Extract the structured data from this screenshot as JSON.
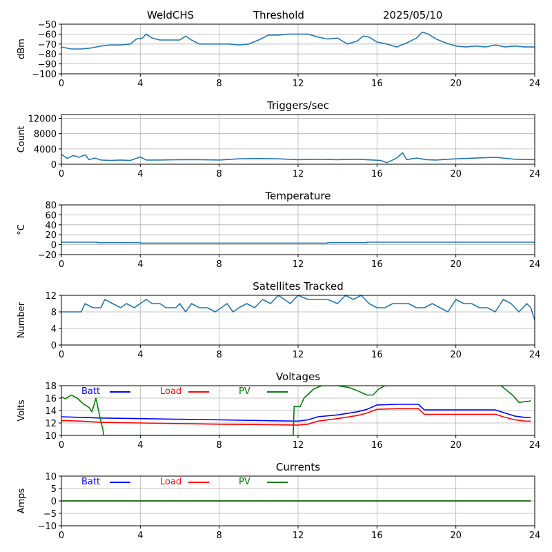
{
  "header": {
    "station": "WeldCHS",
    "mode": "Threshold",
    "date": "2025/05/10"
  },
  "colors": {
    "series": "#1f77b4",
    "batt": "#0000ff",
    "load": "#ff0000",
    "pv": "#008000",
    "grid": "#b0b0b0"
  },
  "chart_data": [
    {
      "type": "line",
      "title": "",
      "ylabel": "dBm",
      "xlim": [
        0,
        24
      ],
      "ylim": [
        -100,
        -50
      ],
      "xticks": [
        0,
        4,
        8,
        12,
        16,
        20,
        24
      ],
      "yticks": [
        -100,
        -90,
        -80,
        -70,
        -60,
        -50
      ],
      "grid": true,
      "series": [
        {
          "x": [
            0,
            0.5,
            1,
            1.5,
            2,
            2.5,
            3,
            3.5,
            3.8,
            4.1,
            4.3,
            4.6,
            5,
            5.5,
            6,
            6.3,
            6.6,
            7,
            7.5,
            8,
            8.5,
            9,
            9.5,
            10,
            10.5,
            11,
            11.5,
            12,
            12.5,
            13,
            13.5,
            14,
            14.5,
            15,
            15.3,
            15.6,
            16,
            16.5,
            17,
            17.5,
            18,
            18.3,
            18.6,
            19,
            19.5,
            20,
            20.5,
            21,
            21.5,
            22,
            22.5,
            23,
            23.5,
            24
          ],
          "y": [
            -73,
            -75,
            -75,
            -74,
            -72,
            -71,
            -71,
            -70,
            -65,
            -64,
            -60,
            -64,
            -66,
            -66,
            -66,
            -62,
            -66,
            -70,
            -70,
            -70,
            -70,
            -71,
            -70,
            -66,
            -61,
            -61,
            -60,
            -60,
            -60,
            -63,
            -65,
            -64,
            -70,
            -67,
            -62,
            -63,
            -68,
            -70,
            -73,
            -69,
            -64,
            -58,
            -60,
            -65,
            -69,
            -72,
            -73,
            -72,
            -73,
            -71,
            -73,
            -72,
            -73,
            -73
          ]
        }
      ]
    },
    {
      "type": "line",
      "title": "Triggers/sec",
      "ylabel": "Count",
      "xlim": [
        0,
        24
      ],
      "ylim": [
        0,
        13000
      ],
      "xticks": [
        0,
        4,
        8,
        12,
        16,
        20,
        24
      ],
      "yticks": [
        0,
        4000,
        8000,
        12000
      ],
      "grid": true,
      "series": [
        {
          "x": [
            0,
            0.3,
            0.6,
            0.9,
            1.2,
            1.4,
            1.7,
            2,
            2.5,
            3,
            3.5,
            4,
            4.3,
            5,
            6,
            7,
            8,
            9,
            10,
            11,
            12,
            13,
            14,
            15,
            15.8,
            16.2,
            16.5,
            17,
            17.3,
            17.5,
            18,
            18.5,
            19,
            20,
            21,
            22,
            23,
            24
          ],
          "y": [
            2600,
            1500,
            2300,
            1800,
            2500,
            1200,
            1600,
            1100,
            1000,
            1100,
            1000,
            1900,
            1100,
            1100,
            1200,
            1200,
            1100,
            1400,
            1500,
            1400,
            1200,
            1300,
            1200,
            1300,
            1100,
            1000,
            400,
            1600,
            3000,
            1200,
            1600,
            1200,
            1100,
            1400,
            1600,
            1800,
            1300,
            1200
          ]
        }
      ]
    },
    {
      "type": "line",
      "title": "Temperature",
      "ylabel": "°C",
      "xlim": [
        0,
        24
      ],
      "ylim": [
        -20,
        80
      ],
      "xticks": [
        0,
        4,
        8,
        12,
        16,
        20,
        24
      ],
      "yticks": [
        -20,
        0,
        20,
        40,
        60,
        80
      ],
      "grid": true,
      "series": [
        {
          "x": [
            0,
            1.8,
            1.8,
            4,
            4,
            13.5,
            13.5,
            15.5,
            15.5,
            24
          ],
          "y": [
            5,
            5,
            4,
            4,
            3,
            3,
            4,
            4,
            5,
            5
          ]
        }
      ]
    },
    {
      "type": "line",
      "title": "Satellites Tracked",
      "ylabel": "Number",
      "xlim": [
        0,
        24
      ],
      "ylim": [
        0,
        12
      ],
      "xticks": [
        0,
        4,
        8,
        12,
        16,
        20,
        24
      ],
      "yticks": [
        0,
        4,
        8,
        12
      ],
      "grid": true,
      "series": [
        {
          "x": [
            0,
            1,
            1.2,
            1.6,
            2,
            2.2,
            2.6,
            3,
            3.3,
            3.7,
            4,
            4.3,
            4.6,
            5,
            5.3,
            5.8,
            6,
            6.3,
            6.6,
            7,
            7.4,
            7.8,
            8.1,
            8.4,
            8.7,
            9,
            9.4,
            9.8,
            10.2,
            10.6,
            11,
            11.3,
            11.6,
            12,
            12.5,
            13,
            13.5,
            14,
            14.4,
            14.8,
            15.2,
            15.6,
            16,
            16.4,
            16.8,
            17.2,
            17.6,
            18,
            18.4,
            18.8,
            19.2,
            19.6,
            20,
            20.4,
            20.8,
            21.2,
            21.6,
            22,
            22.4,
            22.8,
            23.2,
            23.6,
            23.8,
            24
          ],
          "y": [
            8,
            8,
            10,
            9,
            9,
            11,
            10,
            9,
            10,
            9,
            10,
            11,
            10,
            10,
            9,
            9,
            10,
            8,
            10,
            9,
            9,
            8,
            9,
            10,
            8,
            9,
            10,
            9,
            11,
            10,
            12,
            11,
            10,
            12,
            11,
            11,
            11,
            10,
            12,
            11,
            12,
            10,
            9,
            9,
            10,
            10,
            10,
            9,
            9,
            10,
            9,
            8,
            11,
            10,
            10,
            9,
            9,
            8,
            11,
            10,
            8,
            10,
            9,
            6
          ]
        }
      ]
    },
    {
      "type": "line",
      "title": "Voltages",
      "ylabel": "Volts",
      "xlim": [
        0,
        24
      ],
      "ylim": [
        10,
        18
      ],
      "xticks": [
        0,
        4,
        8,
        12,
        16,
        20,
        24
      ],
      "yticks": [
        10,
        12,
        14,
        16,
        18
      ],
      "grid": true,
      "legend": "top-left",
      "series": [
        {
          "name": "Batt",
          "color": "batt",
          "x": [
            0,
            1,
            2,
            4,
            6,
            8,
            10,
            11,
            12,
            12.5,
            13,
            14,
            15,
            15.5,
            16,
            17,
            18,
            18.1,
            18.4,
            19,
            20,
            21,
            22,
            22.5,
            23,
            23.5,
            23.8
          ],
          "y": [
            13.0,
            12.9,
            12.8,
            12.7,
            12.6,
            12.5,
            12.4,
            12.35,
            12.3,
            12.5,
            13.0,
            13.3,
            13.8,
            14.2,
            14.9,
            15.0,
            15.0,
            15.0,
            14.1,
            14.1,
            14.1,
            14.1,
            14.1,
            13.6,
            13.1,
            12.9,
            12.9
          ]
        },
        {
          "name": "Load",
          "color": "load",
          "x": [
            0,
            1,
            2,
            4,
            6,
            8,
            10,
            11,
            12,
            12.5,
            13,
            14,
            15,
            15.5,
            16,
            17,
            18,
            18.1,
            18.4,
            19,
            20,
            21,
            22,
            22.5,
            23,
            23.5,
            23.8
          ],
          "y": [
            12.4,
            12.3,
            12.1,
            12.0,
            11.9,
            11.8,
            11.75,
            11.7,
            11.65,
            11.8,
            12.3,
            12.7,
            13.2,
            13.6,
            14.2,
            14.3,
            14.3,
            14.3,
            13.4,
            13.4,
            13.4,
            13.4,
            13.4,
            12.9,
            12.5,
            12.3,
            12.3
          ]
        },
        {
          "name": "PV",
          "color": "pv",
          "x": [
            0,
            0.2,
            0.5,
            0.8,
            1.1,
            1.4,
            1.55,
            1.75,
            1.95,
            2.1,
            2.15,
            11.75,
            11.8,
            12.1,
            12.3,
            12.8,
            13.2,
            14,
            14.6,
            15,
            15.5,
            15.8,
            16.1,
            16.4,
            22.3,
            22.6,
            22.9,
            23.2,
            23.4,
            23.7,
            23.8
          ],
          "y": [
            16.2,
            15.9,
            16.5,
            16.0,
            15.1,
            14.5,
            13.8,
            16.0,
            13.0,
            11.0,
            10.0,
            10.0,
            14.7,
            14.6,
            16.0,
            17.5,
            18.0,
            18.0,
            17.7,
            17.2,
            16.5,
            16.5,
            17.5,
            18.0,
            18.0,
            17.2,
            16.4,
            15.3,
            15.4,
            15.5,
            15.6
          ]
        }
      ]
    },
    {
      "type": "line",
      "title": "Currents",
      "ylabel": "Amps",
      "xlim": [
        0,
        24
      ],
      "ylim": [
        -10,
        10
      ],
      "xticks": [
        0,
        4,
        8,
        12,
        16,
        20,
        24
      ],
      "yticks": [
        -10,
        -5,
        0,
        5,
        10
      ],
      "grid": true,
      "legend": "top-left",
      "series": [
        {
          "name": "Batt",
          "color": "batt",
          "x": [
            0,
            23.8
          ],
          "y": [
            0,
            0
          ]
        },
        {
          "name": "Load",
          "color": "load",
          "x": [
            0,
            23.8
          ],
          "y": [
            0,
            0
          ]
        },
        {
          "name": "PV",
          "color": "pv",
          "x": [
            0,
            23.8
          ],
          "y": [
            0,
            0
          ]
        }
      ]
    }
  ]
}
